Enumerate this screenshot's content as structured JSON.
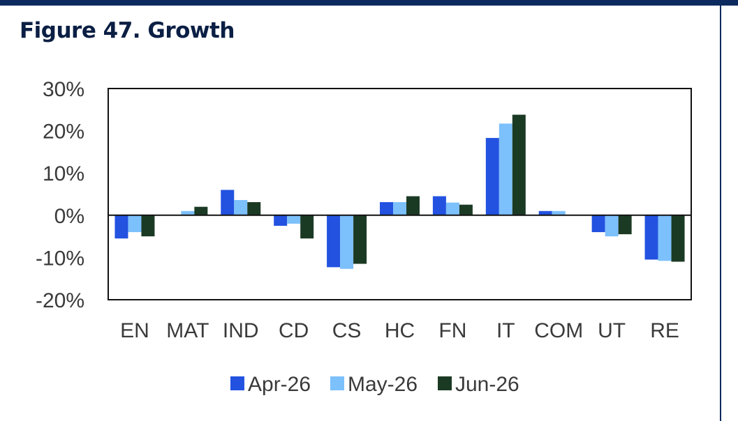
{
  "header": {
    "title": "Figure 47. Growth"
  },
  "chart_data": {
    "type": "bar",
    "title": "Figure 47. Growth",
    "xlabel": "",
    "ylabel": "",
    "ylim": [
      -20,
      30
    ],
    "yticks": [
      30,
      20,
      10,
      0,
      -10,
      -20
    ],
    "ytick_labels": [
      "30%",
      "20%",
      "10%",
      "0%",
      "-10%",
      "-20%"
    ],
    "grid": false,
    "legend_position": "bottom",
    "categories": [
      "EN",
      "MAT",
      "IND",
      "CD",
      "CS",
      "HC",
      "FN",
      "IT",
      "COM",
      "UT",
      "RE"
    ],
    "series": [
      {
        "name": "Apr-26",
        "color": "#2352e0",
        "values": [
          -5.5,
          0,
          6.0,
          -2.5,
          -12.3,
          3.1,
          4.5,
          18.3,
          1.0,
          -4.0,
          -10.5
        ]
      },
      {
        "name": "May-26",
        "color": "#7cc0fc",
        "values": [
          -4.0,
          1.0,
          3.6,
          -2.0,
          -12.7,
          3.1,
          3.0,
          21.7,
          1.0,
          -5.0,
          -10.8
        ]
      },
      {
        "name": "Jun-26",
        "color": "#1b3a24",
        "values": [
          -5.0,
          2.0,
          3.1,
          -5.5,
          -11.5,
          4.5,
          2.5,
          23.8,
          0,
          -4.5,
          -11.0
        ]
      }
    ]
  }
}
